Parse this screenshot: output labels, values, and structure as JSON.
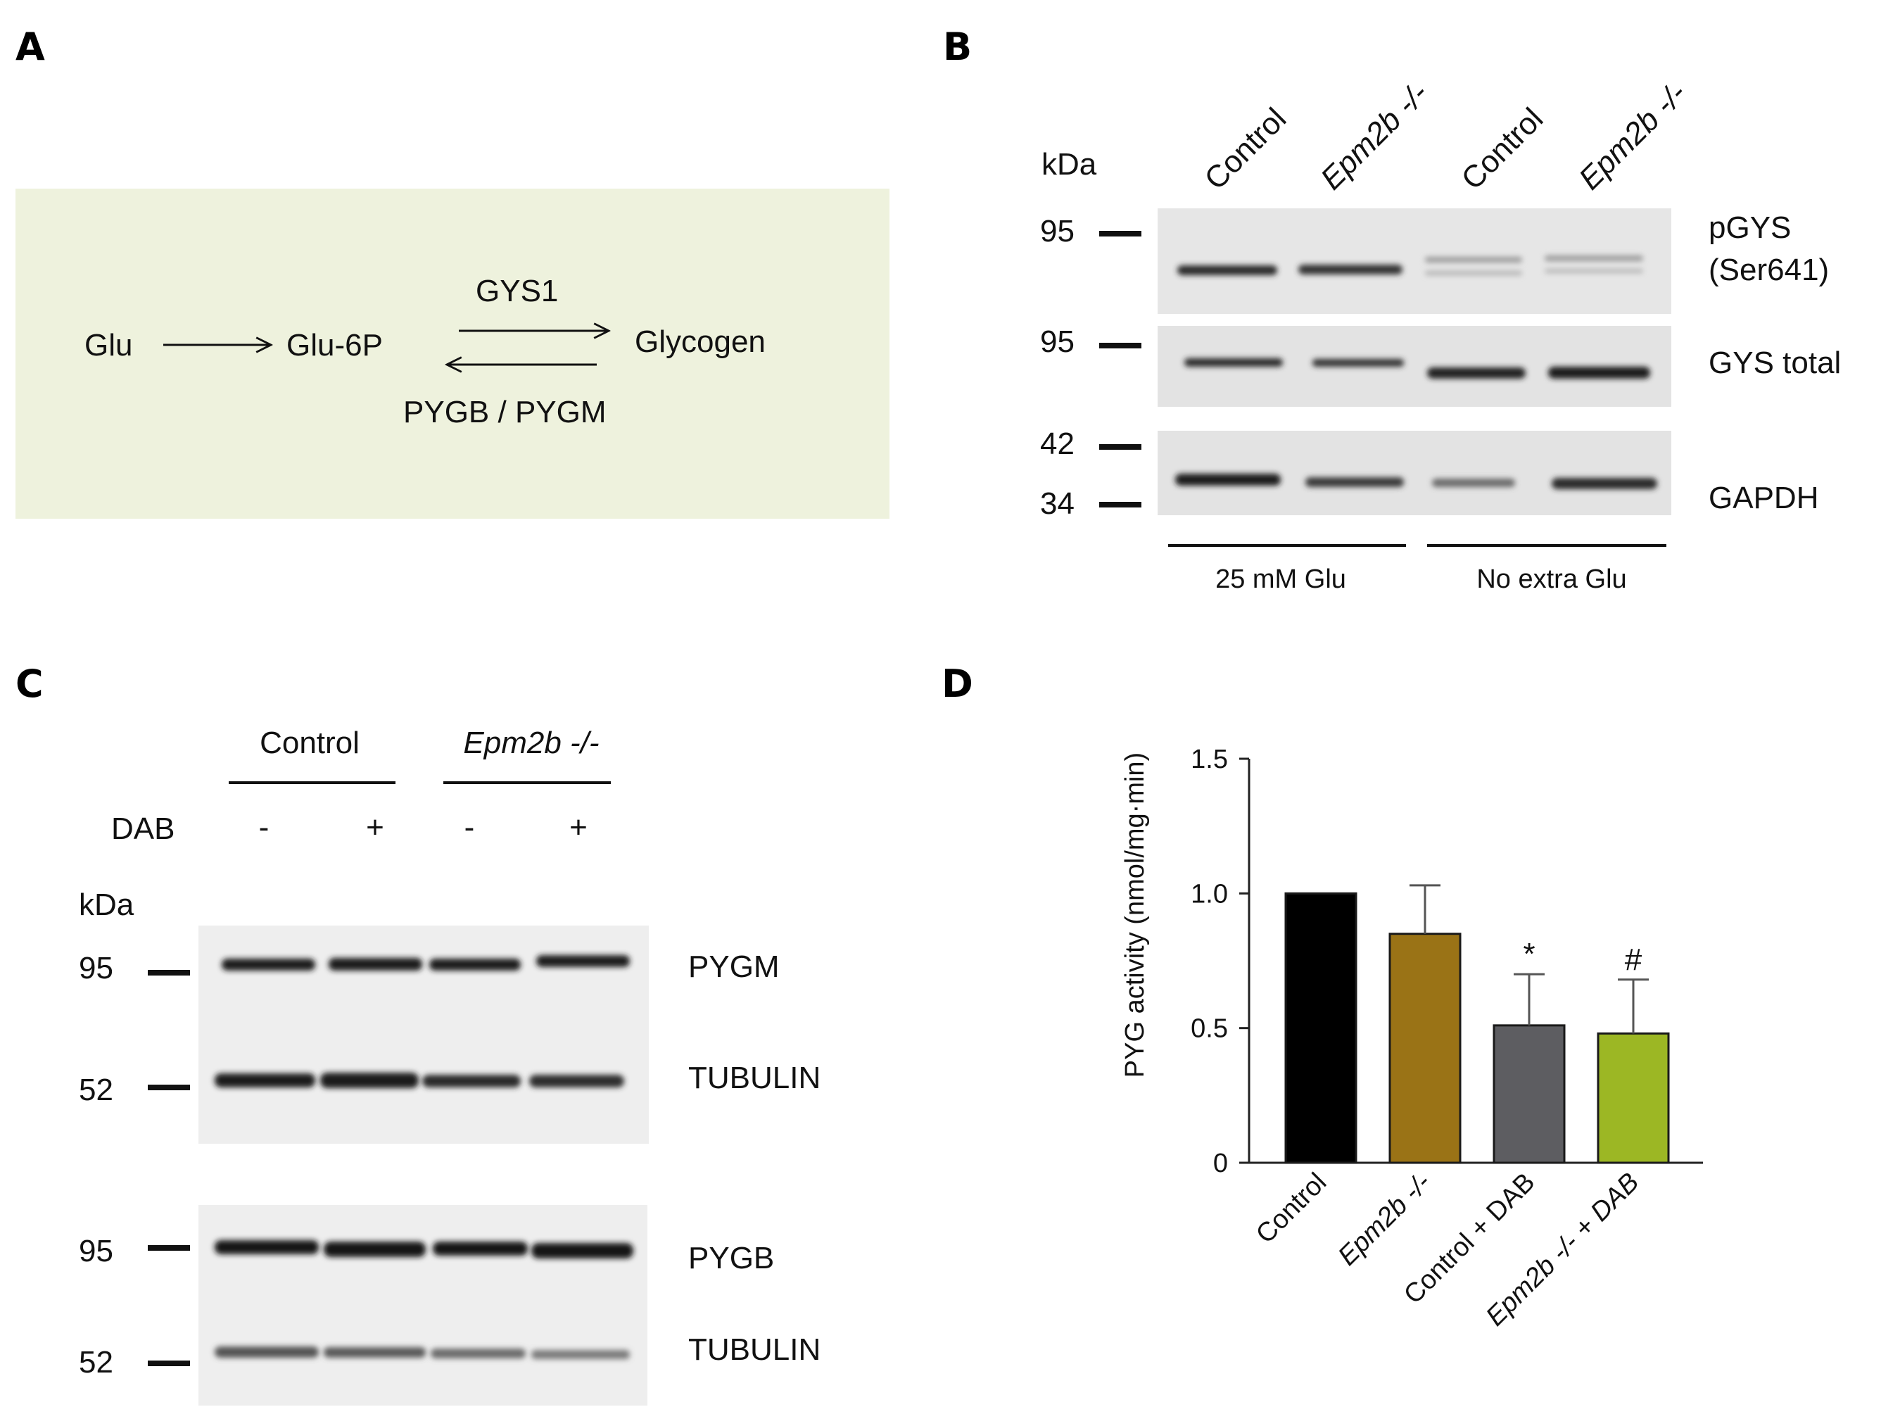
{
  "panels": {
    "A": {
      "letter": "A",
      "nodes": {
        "glu": "Glu",
        "glu6p": "Glu-6P",
        "glycogen": "Glycogen"
      },
      "enzymes": {
        "forward": "GYS1",
        "reverse": "PYGB / PYGM"
      },
      "box_color": "#eef2dd"
    },
    "B": {
      "letter": "B",
      "unit": "kDa",
      "lanes": [
        "Control",
        "Epm2b -/-",
        "Control",
        "Epm2b -/-"
      ],
      "blots": [
        {
          "label_line1": "pGYS",
          "label_line2": "(Ser641)",
          "markers": [
            "95"
          ]
        },
        {
          "label_line1": "GYS total",
          "label_line2": "",
          "markers": [
            "95"
          ]
        },
        {
          "label_line1": "GAPDH",
          "label_line2": "",
          "markers": [
            "42",
            "34"
          ]
        }
      ],
      "groups": [
        "25 mM Glu",
        "No extra Glu"
      ]
    },
    "C": {
      "letter": "C",
      "genotypes": [
        "Control",
        "Epm2b -/-"
      ],
      "treatment_label": "DAB",
      "treatment_signs": [
        "-",
        "+",
        "-",
        "+"
      ],
      "unit": "kDa",
      "blots": [
        {
          "label": "PYGM",
          "marker": "95"
        },
        {
          "label": "TUBULIN",
          "marker": "52"
        },
        {
          "label": "PYGB",
          "marker": "95"
        },
        {
          "label": "TUBULIN",
          "marker": "52"
        }
      ]
    },
    "D": {
      "letter": "D"
    }
  },
  "chart_data": {
    "type": "bar",
    "title": "",
    "ylabel": "PYG activity (nmol/mg·min)",
    "xlabel": "",
    "ylim": [
      0,
      1.5
    ],
    "yticks": [
      "0",
      "0.5",
      "1.0",
      "1.5"
    ],
    "categories": [
      "Control",
      "Epm2b -/-",
      "Control + DAB",
      "Epm2b -/- + DAB"
    ],
    "values": [
      1.0,
      0.85,
      0.51,
      0.48
    ],
    "errors": [
      0,
      0.18,
      0.19,
      0.2
    ],
    "annotations": [
      "",
      "",
      "*",
      "#"
    ],
    "colors": [
      "#000000",
      "#9a7316",
      "#5d5d61",
      "#9cb724"
    ]
  }
}
